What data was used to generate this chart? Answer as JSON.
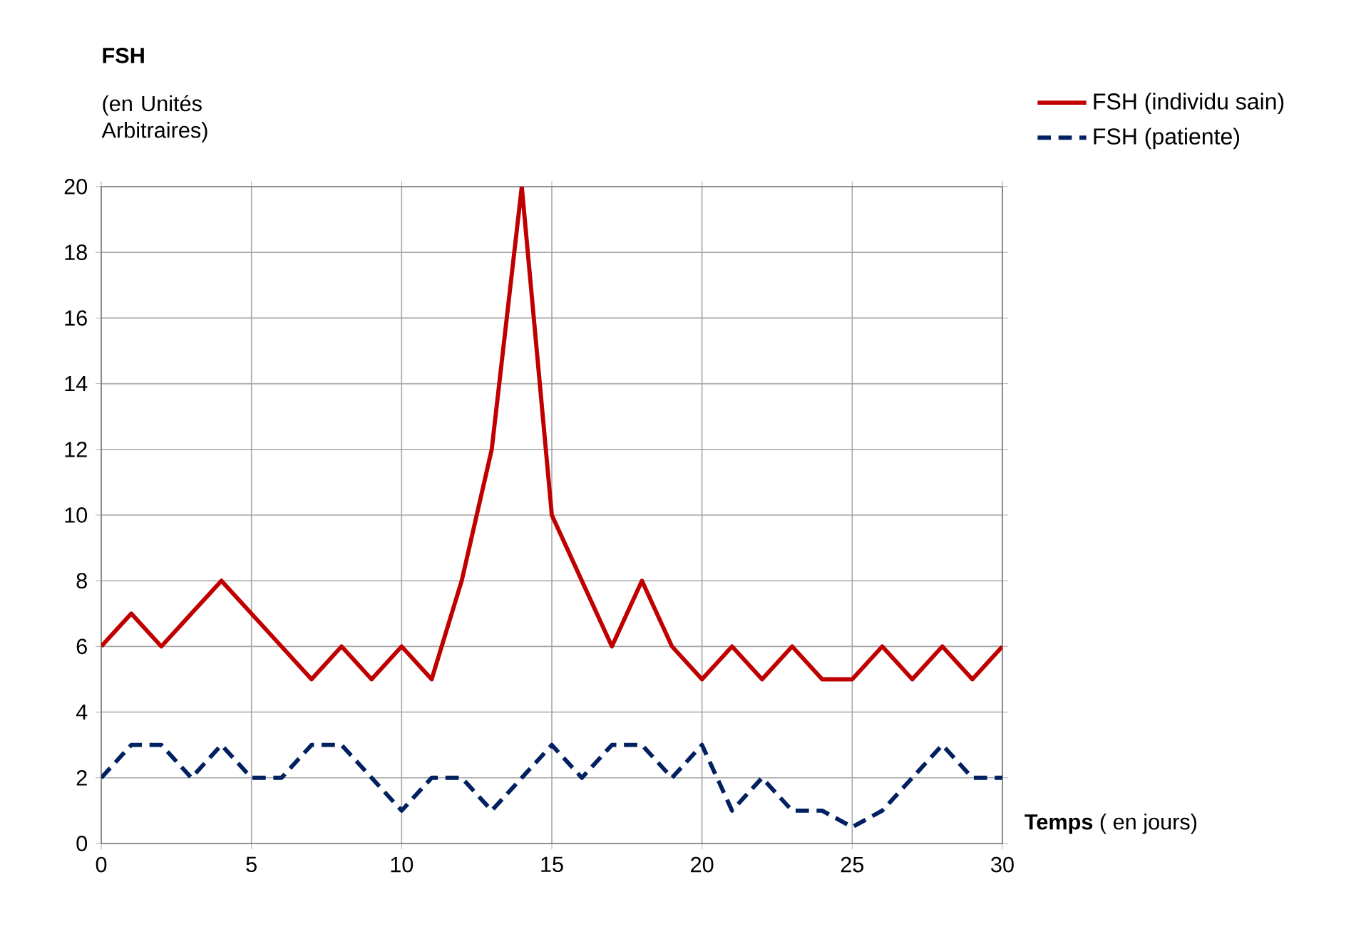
{
  "chart_data": {
    "type": "line",
    "title": "FSH",
    "ylabel": "(en Unités Arbitraires)",
    "xlabel": "**Temps** ( en jours)",
    "x": [
      0,
      1,
      2,
      3,
      4,
      5,
      6,
      7,
      8,
      9,
      10,
      11,
      12,
      13,
      14,
      15,
      16,
      17,
      18,
      19,
      20,
      21,
      22,
      23,
      24,
      25,
      26,
      27,
      28,
      29,
      30
    ],
    "series": [
      {
        "name": "FSH (individu sain)",
        "color": "#c00000",
        "line_style": "solid",
        "values": [
          6,
          7,
          6,
          7,
          8,
          7,
          6,
          5,
          6,
          5,
          6,
          5,
          8,
          12,
          20,
          10,
          8,
          6,
          8,
          6,
          5,
          6,
          5,
          6,
          5,
          5,
          6,
          5,
          6,
          5,
          6
        ]
      },
      {
        "name": "FSH (patiente)",
        "color": "#002060",
        "line_style": "dashed",
        "values": [
          2,
          3,
          3,
          2,
          3,
          2,
          2,
          3,
          3,
          2,
          1,
          2,
          2,
          1,
          2,
          3,
          2,
          3,
          3,
          2,
          3,
          1,
          2,
          1,
          1,
          0.5,
          1,
          2,
          3,
          2,
          2
        ]
      }
    ],
    "xlim": [
      0,
      30
    ],
    "xticks": [
      0,
      5,
      10,
      15,
      20,
      25,
      30
    ],
    "ylim": [
      0,
      20
    ],
    "yticks": [
      0,
      2,
      4,
      6,
      8,
      10,
      12,
      14,
      16,
      18,
      20
    ],
    "grid": true,
    "legend": "top right",
    "marker": "none"
  }
}
